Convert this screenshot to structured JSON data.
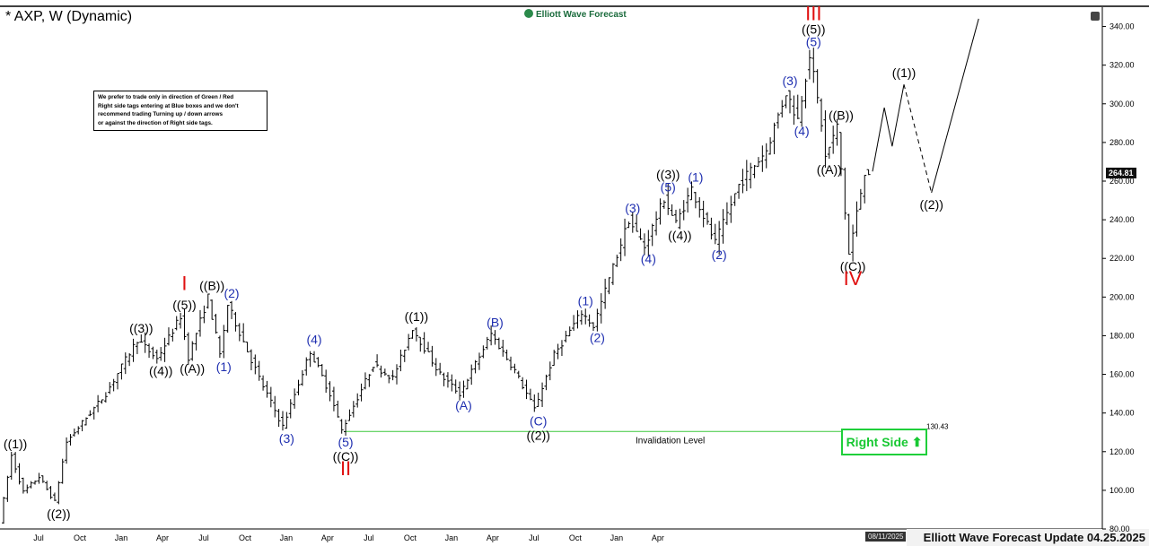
{
  "header": {
    "title": "* AXP, W (Dynamic)",
    "logo_text": "Elliott Wave Forecast"
  },
  "note_lines": [
    "We prefer to trade only in direction of Green / Red",
    "Right side tags entering at Blue boxes and we don't",
    "recommend trading Turning up / down arrows",
    "or against the direction of Right side tags."
  ],
  "footer": {
    "title": "Elliott Wave Forecast Update 04.25.2025",
    "date_box": "08/11/2025"
  },
  "right_side_label": "Right Side",
  "last_price": "264.81",
  "colors": {
    "blue": "#1f2fb0",
    "red": "#e01010",
    "black": "#000000",
    "green_line": "#3cc83c",
    "right_side": "#17c832"
  },
  "chart_data": {
    "type": "ohlc-bar",
    "title": "* AXP, W (Dynamic)",
    "ylim": [
      80,
      350
    ],
    "y_ticks": [
      80,
      100,
      120,
      140,
      160,
      180,
      200,
      220,
      240,
      260,
      280,
      300,
      320,
      340
    ],
    "x_ticks": [
      {
        "label": "Jul",
        "x": "2022-07"
      },
      {
        "label": "Oct",
        "x": "2022-10"
      },
      {
        "label": "Jan",
        "x": "2023-01"
      },
      {
        "label": "Apr",
        "x": "2023-04"
      },
      {
        "label": "Jul",
        "x": "2023-07"
      },
      {
        "label": "Oct",
        "x": "2023-10"
      },
      {
        "label": "Jan",
        "x": "2024-01"
      },
      {
        "label": "Apr",
        "x": "2024-04"
      },
      {
        "label": "Jul",
        "x": "2024-07"
      },
      {
        "label": "Oct",
        "x": "2024-10"
      },
      {
        "label": "Jan",
        "x": "2025-01"
      },
      {
        "label": "Apr",
        "x": "2025-04"
      },
      {
        "label": "Jul",
        "x": "2025-07"
      },
      {
        "label": "Oct",
        "x": "2025-10"
      },
      {
        "label": "Jan",
        "x": "2026-01"
      },
      {
        "label": "Apr",
        "x": "2026-04"
      }
    ],
    "price_path": [
      [
        0,
        84
      ],
      [
        3,
        118
      ],
      [
        6,
        99
      ],
      [
        10,
        107
      ],
      [
        14,
        94
      ],
      [
        17,
        125
      ],
      [
        27,
        150
      ],
      [
        35,
        178
      ],
      [
        40,
        168
      ],
      [
        46,
        190
      ],
      [
        48,
        169
      ],
      [
        53,
        200
      ],
      [
        56,
        170
      ],
      [
        58,
        196
      ],
      [
        66,
        158
      ],
      [
        72,
        133
      ],
      [
        79,
        172
      ],
      [
        84,
        150
      ],
      [
        87,
        131
      ],
      [
        95,
        165
      ],
      [
        100,
        158
      ],
      [
        105,
        184
      ],
      [
        112,
        160
      ],
      [
        117,
        150
      ],
      [
        125,
        181
      ],
      [
        131,
        162
      ],
      [
        136,
        142
      ],
      [
        141,
        170
      ],
      [
        148,
        192
      ],
      [
        151,
        185
      ],
      [
        160,
        240
      ],
      [
        164,
        226
      ],
      [
        169,
        251
      ],
      [
        172,
        238
      ],
      [
        176,
        256
      ],
      [
        182,
        228
      ],
      [
        188,
        258
      ],
      [
        195,
        276
      ],
      [
        200,
        306
      ],
      [
        203,
        292
      ],
      [
        206,
        326
      ],
      [
        209,
        290
      ],
      [
        210,
        272
      ],
      [
        213,
        288
      ],
      [
        216,
        222
      ],
      [
        220,
        265
      ]
    ],
    "wave_labels": [
      {
        "text": "((1))",
        "price": 118,
        "week": 3,
        "color": "black",
        "pos": "above"
      },
      {
        "text": "((2))",
        "price": 94,
        "week": 14,
        "color": "black",
        "pos": "below"
      },
      {
        "text": "((3))",
        "price": 178,
        "week": 35,
        "color": "black",
        "pos": "above"
      },
      {
        "text": "((4))",
        "price": 168,
        "week": 40,
        "color": "black",
        "pos": "below"
      },
      {
        "text": "((5))",
        "price": 190,
        "week": 46,
        "color": "black",
        "pos": "above"
      },
      {
        "text": "I",
        "price": 200,
        "week": 46,
        "color": "red",
        "pos": "above-high"
      },
      {
        "text": "((A))",
        "price": 169,
        "week": 48,
        "color": "black",
        "pos": "below"
      },
      {
        "text": "((B))",
        "price": 200,
        "week": 53,
        "color": "black",
        "pos": "above"
      },
      {
        "text": "(1)",
        "price": 170,
        "week": 56,
        "color": "blue",
        "pos": "below"
      },
      {
        "text": "(2)",
        "price": 196,
        "week": 58,
        "color": "blue",
        "pos": "above"
      },
      {
        "text": "(3)",
        "price": 133,
        "week": 72,
        "color": "blue",
        "pos": "below"
      },
      {
        "text": "(4)",
        "price": 172,
        "week": 79,
        "color": "blue",
        "pos": "above"
      },
      {
        "text": "(5)",
        "price": 131,
        "week": 87,
        "color": "blue",
        "pos": "below"
      },
      {
        "text": "((C))",
        "price": 131,
        "week": 87,
        "color": "black",
        "pos": "below2"
      },
      {
        "text": "II",
        "price": 131,
        "week": 87,
        "color": "red",
        "pos": "below3"
      },
      {
        "text": "((1))",
        "price": 184,
        "week": 105,
        "color": "black",
        "pos": "above"
      },
      {
        "text": "(A)",
        "price": 150,
        "week": 117,
        "color": "blue",
        "pos": "below"
      },
      {
        "text": "(B)",
        "price": 181,
        "week": 125,
        "color": "blue",
        "pos": "above"
      },
      {
        "text": "(C)",
        "price": 142,
        "week": 136,
        "color": "blue",
        "pos": "below"
      },
      {
        "text": "((2))",
        "price": 142,
        "week": 136,
        "color": "black",
        "pos": "below2"
      },
      {
        "text": "(1)",
        "price": 192,
        "week": 148,
        "color": "blue",
        "pos": "above"
      },
      {
        "text": "(2)",
        "price": 185,
        "week": 151,
        "color": "blue",
        "pos": "below"
      },
      {
        "text": "(3)",
        "price": 240,
        "week": 160,
        "color": "blue",
        "pos": "above"
      },
      {
        "text": "(4)",
        "price": 226,
        "week": 164,
        "color": "blue",
        "pos": "below"
      },
      {
        "text": "(5)",
        "price": 251,
        "week": 169,
        "color": "blue",
        "pos": "above"
      },
      {
        "text": "((3))",
        "price": 251,
        "week": 169,
        "color": "black",
        "pos": "above2"
      },
      {
        "text": "((4))",
        "price": 238,
        "week": 172,
        "color": "black",
        "pos": "below"
      },
      {
        "text": "(1)",
        "price": 256,
        "week": 176,
        "color": "blue",
        "pos": "above"
      },
      {
        "text": "(2)",
        "price": 228,
        "week": 182,
        "color": "blue",
        "pos": "below"
      },
      {
        "text": "(3)",
        "price": 306,
        "week": 200,
        "color": "blue",
        "pos": "above"
      },
      {
        "text": "(4)",
        "price": 292,
        "week": 203,
        "color": "blue",
        "pos": "below"
      },
      {
        "text": "(5)",
        "price": 326,
        "week": 206,
        "color": "blue",
        "pos": "above"
      },
      {
        "text": "((5))",
        "price": 326,
        "week": 206,
        "color": "black",
        "pos": "above2"
      },
      {
        "text": "III",
        "price": 326,
        "week": 206,
        "color": "red",
        "pos": "above3"
      },
      {
        "text": "((A))",
        "price": 272,
        "week": 210,
        "color": "black",
        "pos": "below"
      },
      {
        "text": "((B))",
        "price": 288,
        "week": 213,
        "color": "black",
        "pos": "above"
      },
      {
        "text": "((C))",
        "price": 222,
        "week": 216,
        "color": "black",
        "pos": "below"
      },
      {
        "text": "IV",
        "price": 222,
        "week": 216,
        "color": "red",
        "pos": "below2"
      },
      {
        "text": "((1))",
        "price": 310,
        "week": 229,
        "color": "black",
        "pos": "above"
      },
      {
        "text": "((2))",
        "price": 254,
        "week": 236,
        "color": "black",
        "pos": "below"
      }
    ],
    "projection": [
      [
        221,
        265
      ],
      [
        224,
        298
      ],
      [
        226,
        278
      ],
      [
        229,
        310
      ],
      [
        236,
        254
      ],
      [
        248,
        344
      ]
    ],
    "invalidation": {
      "price": 130.43,
      "label": "Invalidation Level",
      "price_label": "130.43"
    }
  }
}
